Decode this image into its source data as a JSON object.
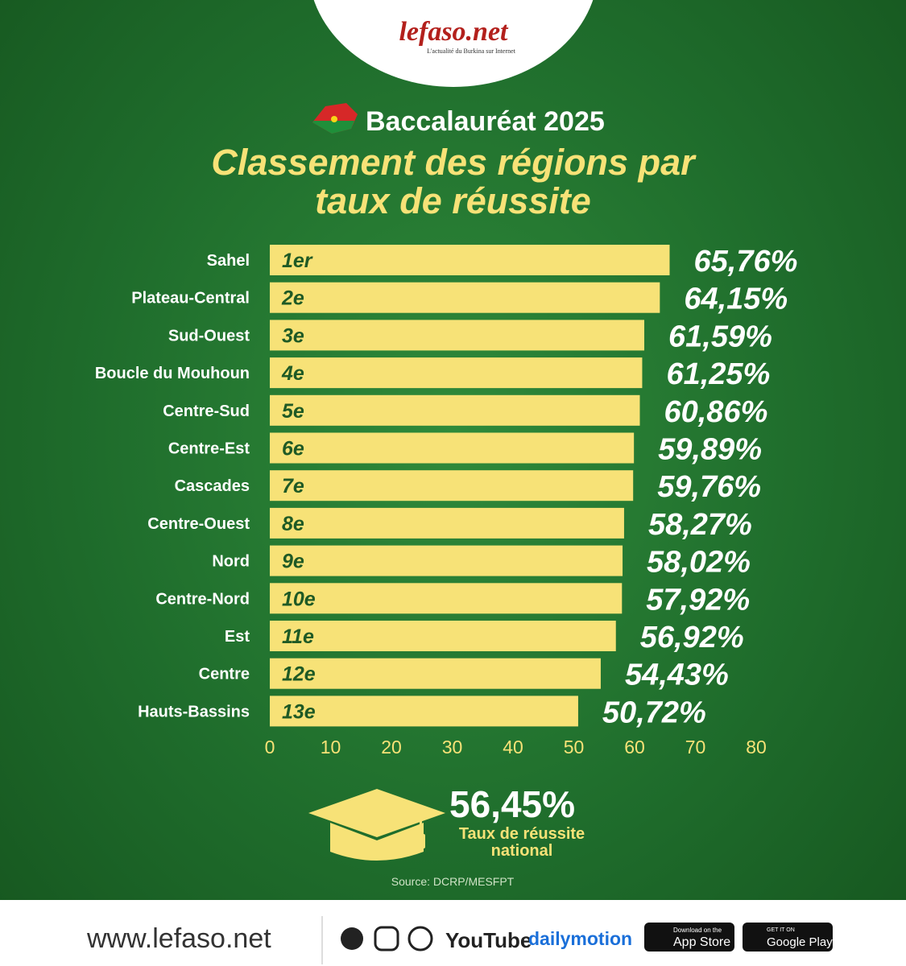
{
  "logo": {
    "name": "lefaso.net",
    "tagline": "L'actualité du Burkina sur Internet"
  },
  "chart_data": {
    "type": "bar",
    "orientation": "horizontal",
    "title": "Baccalauréat 2025",
    "subtitle": "Classement des régions par taux de réussite",
    "categories": [
      "Sahel",
      "Plateau-Central",
      "Sud-Ouest",
      "Boucle du Mouhoun",
      "Centre-Sud",
      "Centre-Est",
      "Cascades",
      "Centre-Ouest",
      "Nord",
      "Centre-Nord",
      "Est",
      "Centre",
      "Hauts-Bassins"
    ],
    "ranks": [
      "1er",
      "2e",
      "3e",
      "4e",
      "5e",
      "6e",
      "7e",
      "8e",
      "9e",
      "10e",
      "11e",
      "12e",
      "13e"
    ],
    "values": [
      65.76,
      64.15,
      61.59,
      61.25,
      60.86,
      59.89,
      59.76,
      58.27,
      58.02,
      57.92,
      56.92,
      54.43,
      50.72
    ],
    "value_labels": [
      "65,76%",
      "64,15%",
      "61,59%",
      "61,25%",
      "60,86%",
      "59,89%",
      "59,76%",
      "58,27%",
      "58,02%",
      "57,92%",
      "56,92%",
      "54,43%",
      "50,72%"
    ],
    "color": "#f7e277",
    "xlim": [
      0,
      80
    ],
    "xticks": [
      0,
      10,
      20,
      30,
      40,
      50,
      60,
      70,
      80
    ],
    "national": {
      "value": 56.45,
      "value_label": "56,45%",
      "label": "Taux de réussite national"
    },
    "source": "Source: DCRP/MESFPT"
  },
  "footer": {
    "website": "www.lefaso.net",
    "youtube": "YouTube",
    "dailymotion": "dailymotion",
    "appstore_small": "Download on the",
    "appstore": "App Store",
    "googleplay_small": "GET IT ON",
    "googleplay": "Google Play"
  }
}
